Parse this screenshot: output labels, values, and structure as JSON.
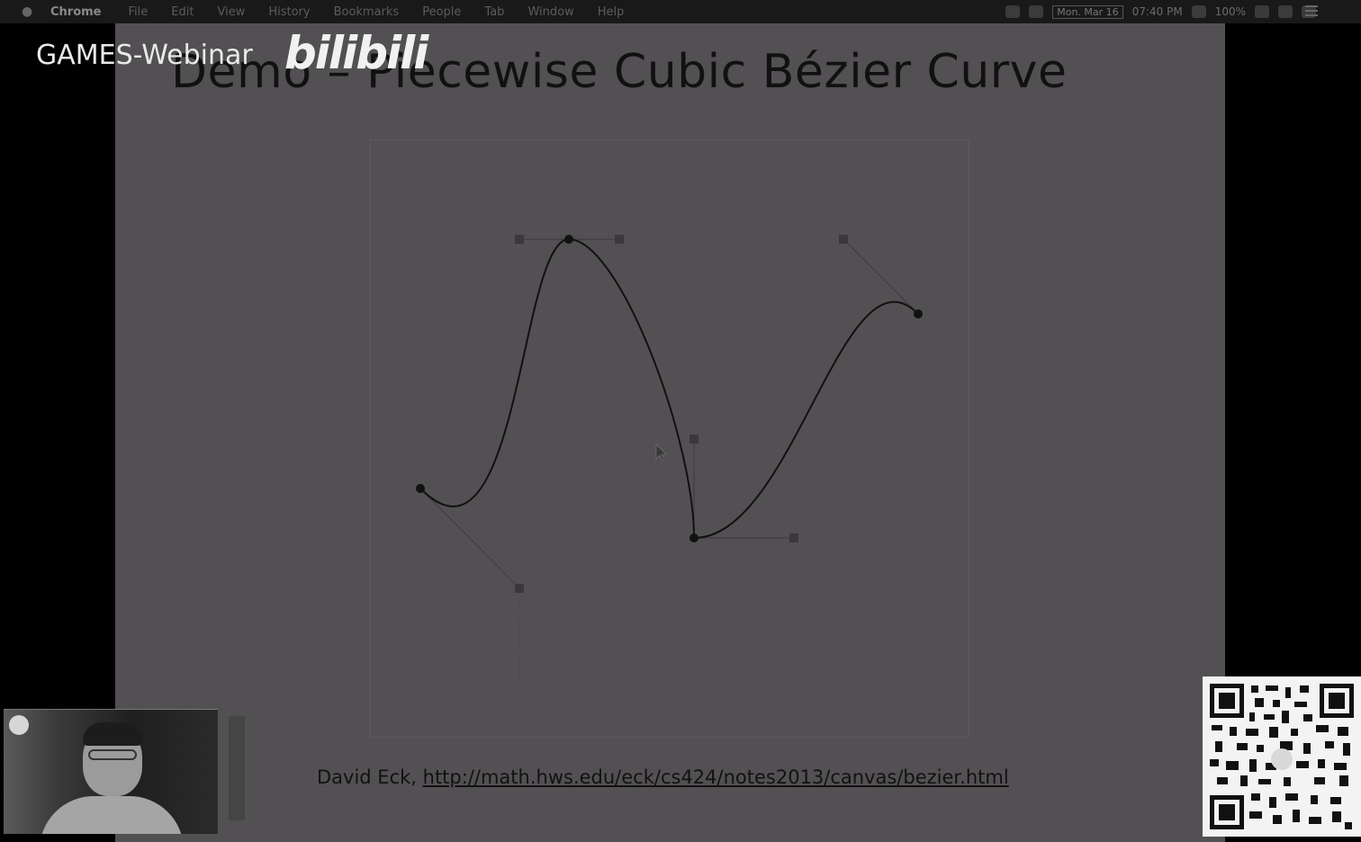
{
  "menubar": {
    "apple_icon": "apple-icon",
    "app_name": "Chrome",
    "items": [
      "File",
      "Edit",
      "View",
      "History",
      "Bookmarks",
      "People",
      "Tab",
      "Window",
      "Help"
    ],
    "status": {
      "date": "Mon. Mar 16",
      "time": "07:40 PM",
      "battery": "100%",
      "icons": [
        "dropbox-icon",
        "location-icon",
        "wifi-icon",
        "volume-icon",
        "search-icon",
        "user-icon",
        "list-icon"
      ]
    }
  },
  "slide": {
    "title": "Demo – Piecewise Cubic Bézier Curve",
    "credit_author": "David Eck, ",
    "credit_link": "http://math.hws.edu/eck/cs424/notes2013/canvas/bezier.html"
  },
  "overlay": {
    "games_label": "GAMES-Webinar",
    "bilibili_label": "bilibili"
  },
  "colors": {
    "slide_bg": "#535053",
    "curve": "#111111",
    "control_point": "#3a383a",
    "handle_line": "#3f3d3f"
  }
}
